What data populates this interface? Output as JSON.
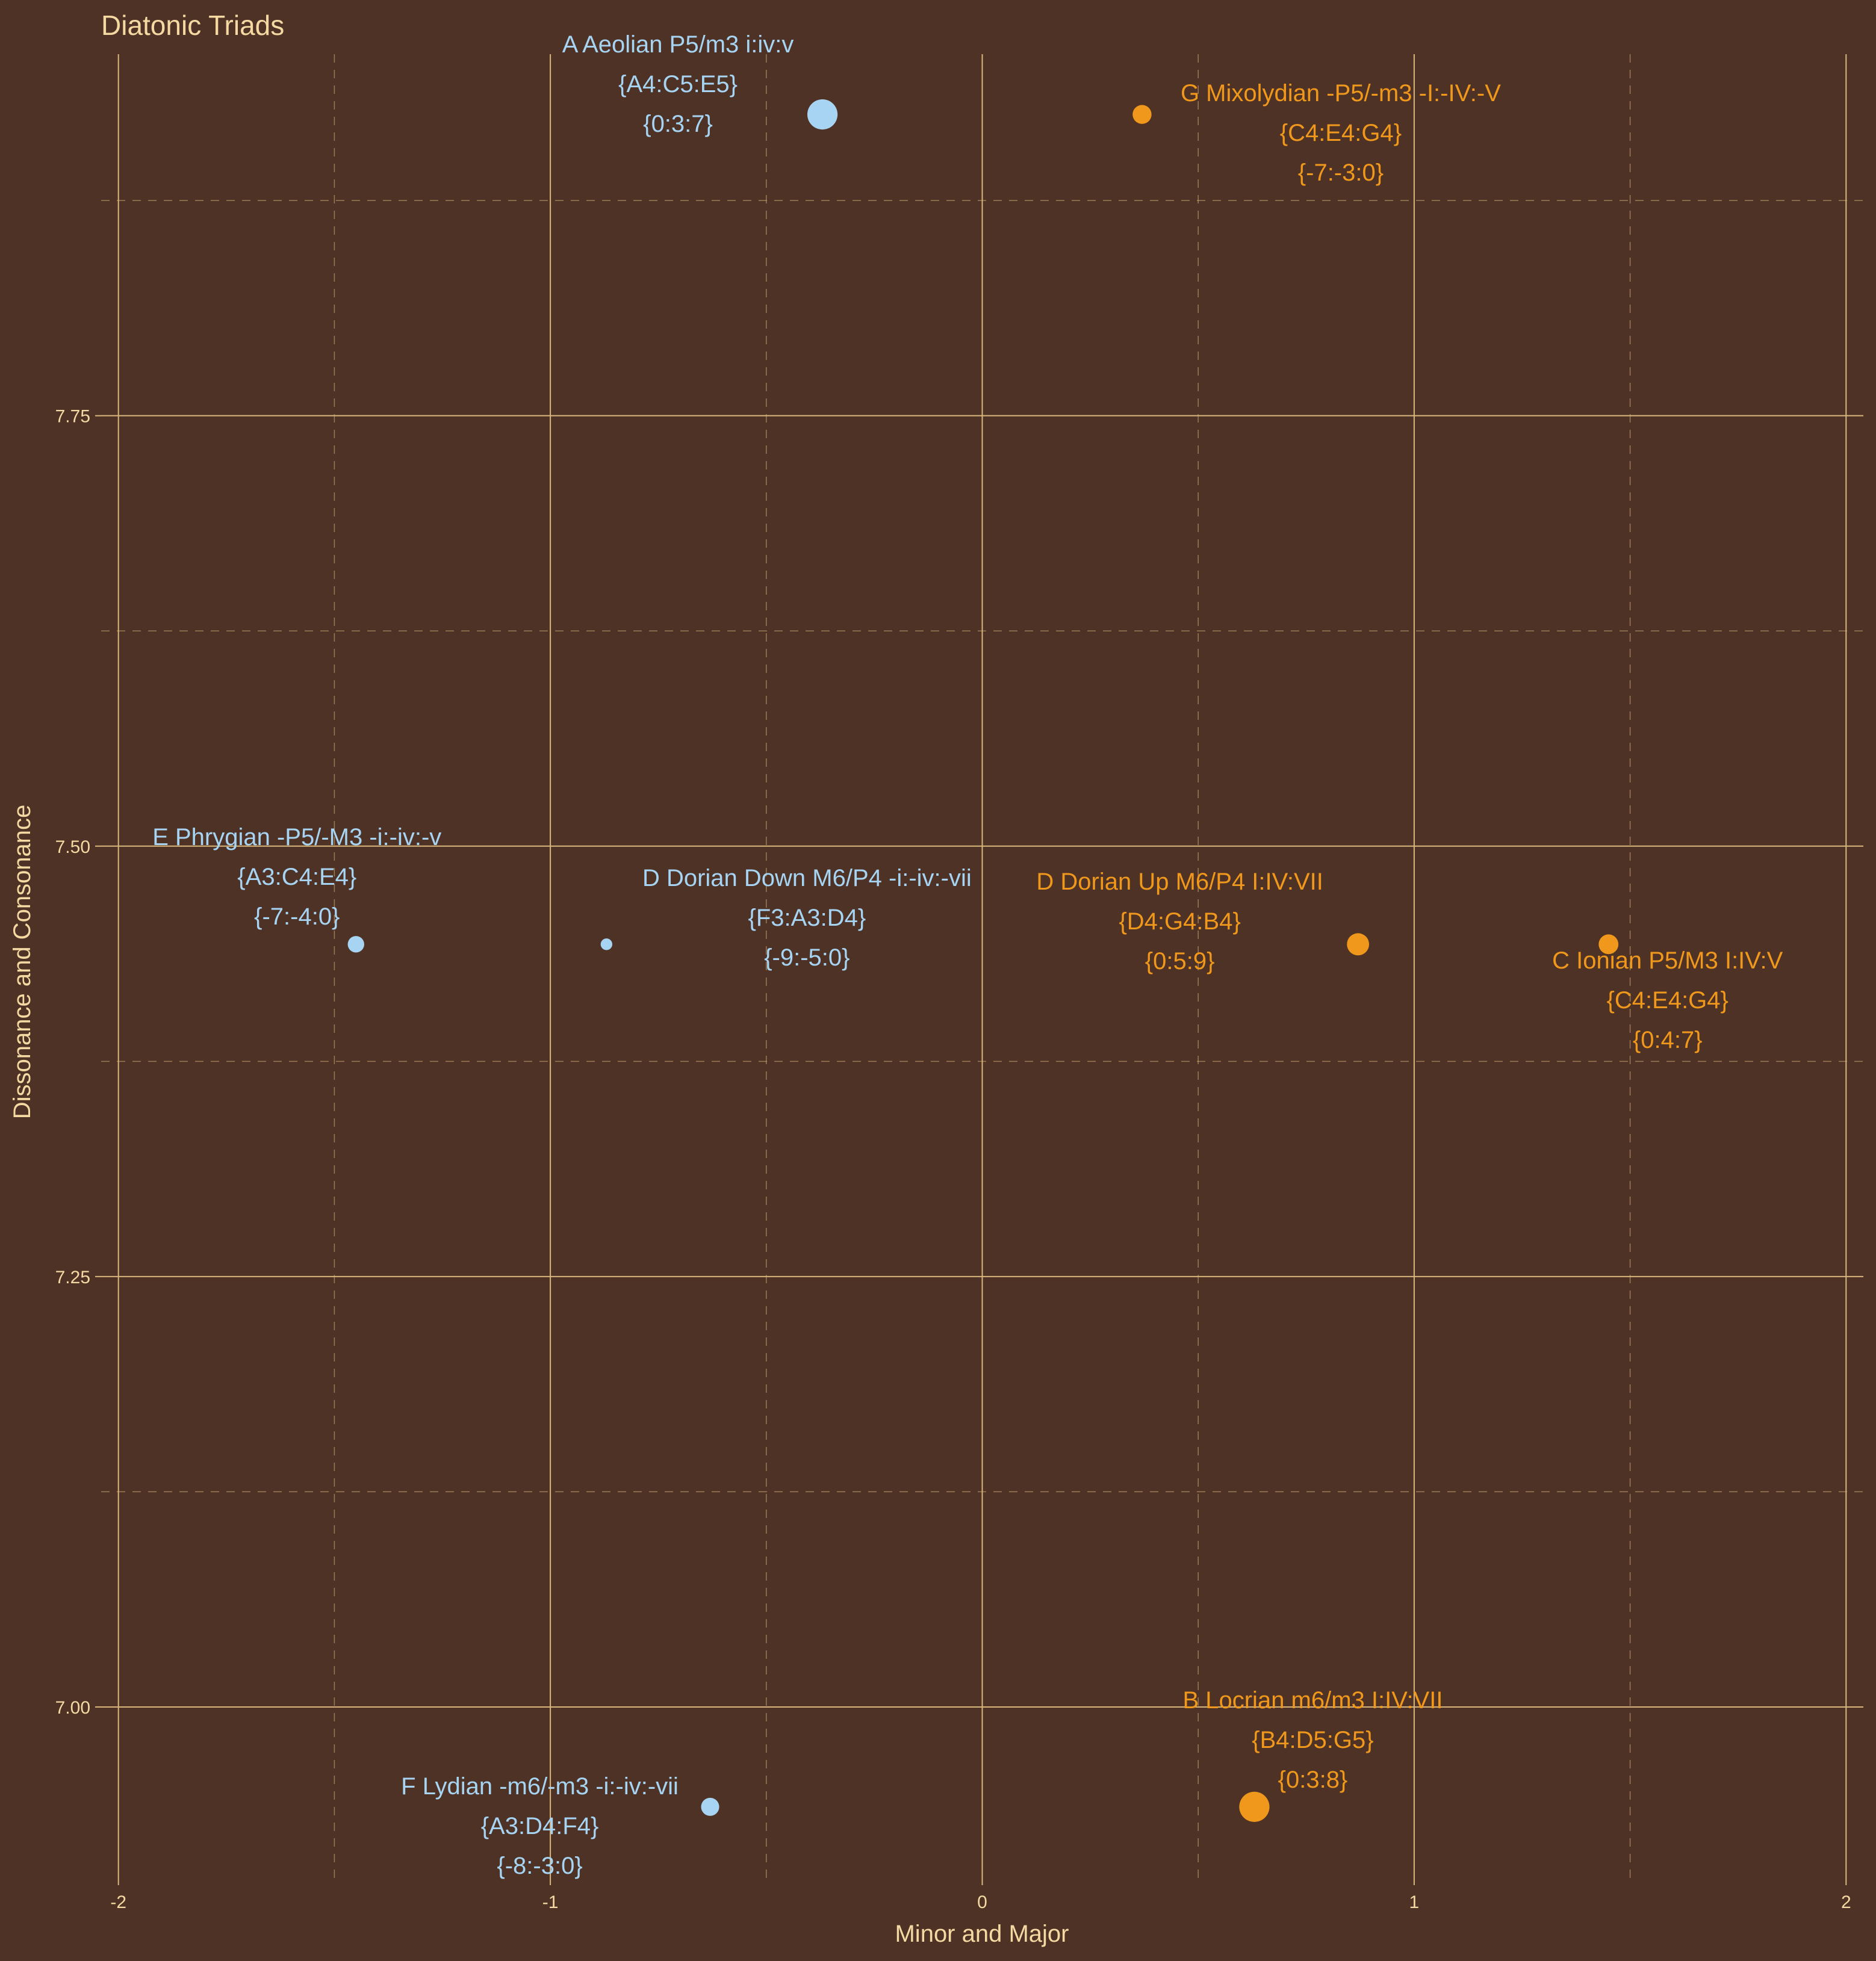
{
  "chart_data": {
    "type": "scatter",
    "title": "Diatonic Triads",
    "xlabel": "Minor and Major",
    "ylabel": "Dissonance and Consonance",
    "xlim": [
      -2.04,
      2.04
    ],
    "ylim": [
      6.9,
      7.96
    ],
    "x_ticks": [
      -2,
      -1,
      0,
      1,
      2
    ],
    "x_tick_labels": [
      "-2",
      "-1",
      "0",
      "1",
      "2"
    ],
    "y_ticks": [
      7.0,
      7.25,
      7.5,
      7.75
    ],
    "y_tick_labels": [
      "7.00",
      "7.25",
      "7.50",
      "7.75"
    ],
    "grid": true,
    "colors": {
      "background": "#4f3226",
      "text": "#f5d9a3",
      "grid": "#d9b77c",
      "minor": "#a6d4f2",
      "major": "#f0981b"
    },
    "points": [
      {
        "name": "A Aeolian P5/m3 i:iv:v",
        "notes": "{A4:C5:E5}",
        "intervals": "{0:3:7}",
        "x": -0.37,
        "y": 7.925,
        "size": 3.0,
        "group": "minor"
      },
      {
        "name": "G Mixolydian -P5/-m3 -I:-IV:-V",
        "notes": "{C4:E4:G4}",
        "intervals": "{-7:-3:0}",
        "x": 0.37,
        "y": 7.925,
        "size": 1.6,
        "group": "major"
      },
      {
        "name": "E Phrygian -P5/-M3 -i:-iv:-v",
        "notes": "{A3:C4:E4}",
        "intervals": "{-7:-4:0}",
        "x": -1.45,
        "y": 7.443,
        "size": 1.3,
        "group": "minor"
      },
      {
        "name": "D Dorian Down M6/P4 -i:-iv:-vii",
        "notes": "{F3:A3:D4}",
        "intervals": "{-9:-5:0}",
        "x": -0.87,
        "y": 7.443,
        "size": 0.7,
        "group": "minor"
      },
      {
        "name": "D Dorian Up M6/P4 I:IV:VII",
        "notes": "{D4:G4:B4}",
        "intervals": "{0:5:9}",
        "x": 0.87,
        "y": 7.443,
        "size": 2.0,
        "group": "major"
      },
      {
        "name": "C Ionian P5/M3 I:IV:V",
        "notes": "{C4:E4:G4}",
        "intervals": "{0:4:7}",
        "x": 1.45,
        "y": 7.443,
        "size": 1.7,
        "group": "major"
      },
      {
        "name": "F Lydian -m6/-m3 -i:-iv:-vii",
        "notes": "{A3:D4:F4}",
        "intervals": "{-8:-3:0}",
        "x": -0.63,
        "y": 6.942,
        "size": 1.5,
        "group": "minor"
      },
      {
        "name": "B Locrian m6/m3 I:IV:VII",
        "notes": "{B4:D5:G5}",
        "intervals": "{0:3:8}",
        "x": 0.63,
        "y": 6.942,
        "size": 3.0,
        "group": "major"
      }
    ]
  }
}
